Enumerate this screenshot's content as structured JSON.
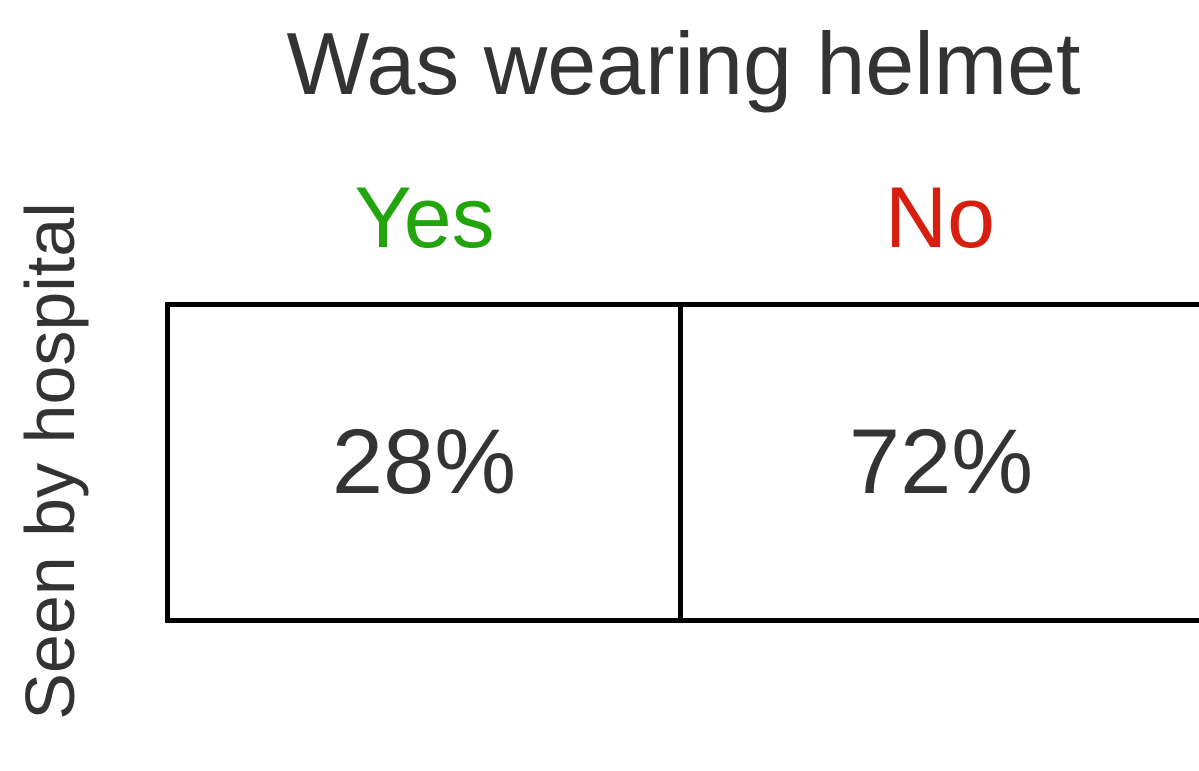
{
  "title": "Was wearing helmet",
  "row_label": "Seen by hospital",
  "columns": [
    {
      "label": "Yes",
      "color": "#22a50c"
    },
    {
      "label": "No",
      "color": "#d81e0e"
    }
  ],
  "cells": [
    "28%",
    "72%"
  ],
  "text_color": "#333333",
  "border_color": "#000000"
}
